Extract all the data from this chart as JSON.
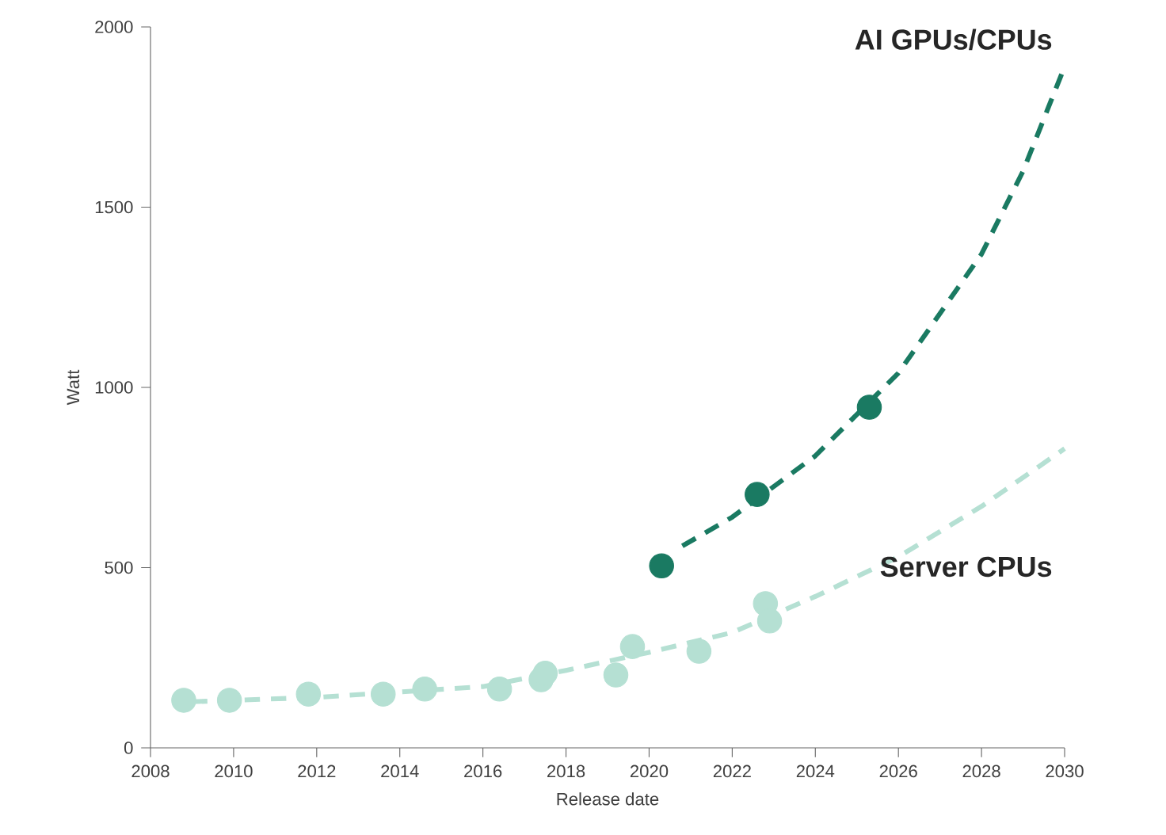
{
  "chart_data": {
    "type": "scatter",
    "xlabel": "Release date",
    "ylabel": "Watt",
    "xlim": [
      2008,
      2030
    ],
    "xticks": [
      2008,
      2010,
      2012,
      2014,
      2016,
      2018,
      2020,
      2022,
      2024,
      2026,
      2028,
      2030
    ],
    "ylim": [
      0,
      2000
    ],
    "yticks": [
      0,
      500,
      1000,
      1500,
      2000
    ],
    "grid": false,
    "legend": false,
    "series": [
      {
        "marker": "circle",
        "color": "#b5e0d3",
        "x": [
          2008.8,
          2009.9,
          2011.8,
          2013.6,
          2014.6,
          2016.4,
          2017.4,
          2017.5,
          2019.2,
          2019.6,
          2021.2,
          2022.8,
          2022.9
        ],
        "values": [
          132,
          132,
          149,
          149,
          163,
          163,
          189,
          207,
          202,
          281,
          268,
          400,
          352
        ]
      },
      {
        "type": "line",
        "name": "Server CPUs",
        "color": "#b5e0d3",
        "line_style": "dashed",
        "x": [
          2009,
          2012,
          2016,
          2018,
          2020,
          2022,
          2024,
          2026,
          2028,
          2030
        ],
        "values": [
          128,
          140,
          170,
          215,
          265,
          320,
          420,
          530,
          670,
          830
        ]
      },
      {
        "marker": "circle",
        "color": "#1a7a62",
        "x": [
          2020.3,
          2022.6,
          2025.3
        ],
        "values": [
          505,
          703,
          945
        ]
      },
      {
        "type": "line",
        "name": "AI GPUs/CPUs",
        "color": "#1a7a62",
        "line_style": "dashed",
        "x": [
          2020.8,
          2022,
          2024,
          2026,
          2028,
          2029,
          2030
        ],
        "values": [
          560,
          640,
          810,
          1040,
          1370,
          1600,
          1890
        ]
      }
    ]
  }
}
